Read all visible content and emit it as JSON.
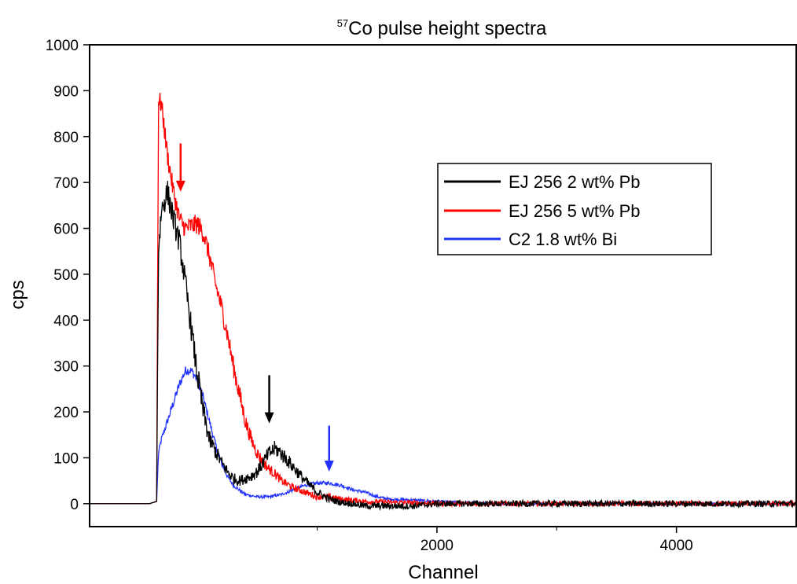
{
  "chart_data": {
    "type": "line",
    "title_sup": "57",
    "title": "Co pulse height spectra",
    "xlabel": "Channel",
    "ylabel": "cps",
    "xlim": [
      -900,
      5000
    ],
    "ylim": [
      -50,
      1000
    ],
    "xticks": [
      2000,
      4000
    ],
    "yticks": [
      0,
      100,
      200,
      300,
      400,
      500,
      600,
      700,
      800,
      900,
      1000
    ],
    "grid": false,
    "legend_position": "upper-right",
    "series": [
      {
        "name": "EJ 256 2 wt% Pb",
        "color": "#000000",
        "x": [
          -900,
          -400,
          -340,
          -325,
          -300,
          -250,
          -200,
          -150,
          -100,
          -50,
          0,
          50,
          100,
          200,
          250,
          300,
          350,
          400,
          450,
          500,
          550,
          600,
          650,
          700,
          750,
          800,
          900,
          1000,
          1100,
          1200,
          1300,
          1400,
          1600,
          1800,
          2000,
          2500,
          3000,
          3500,
          4000,
          4500,
          5000
        ],
        "values": [
          0,
          0,
          5,
          550,
          640,
          680,
          620,
          570,
          480,
          380,
          280,
          200,
          140,
          90,
          70,
          55,
          50,
          55,
          60,
          70,
          90,
          110,
          120,
          110,
          95,
          80,
          50,
          25,
          10,
          3,
          0,
          -5,
          -5,
          -5,
          0,
          0,
          0,
          0,
          0,
          0,
          0
        ],
        "noise": 28
      },
      {
        "name": "EJ 256 5 wt% Pb",
        "color": "#ff0000",
        "x": [
          -900,
          -400,
          -340,
          -325,
          -300,
          -250,
          -200,
          -150,
          -100,
          -50,
          0,
          50,
          100,
          150,
          200,
          250,
          300,
          350,
          400,
          450,
          500,
          550,
          600,
          650,
          700,
          800,
          900,
          1000,
          1100,
          1200,
          1400,
          1600,
          1800,
          2000,
          2500,
          3000,
          3500,
          4000,
          4500,
          5000
        ],
        "values": [
          0,
          0,
          5,
          880,
          870,
          760,
          680,
          620,
          600,
          605,
          610,
          590,
          540,
          480,
          430,
          370,
          300,
          240,
          180,
          140,
          110,
          90,
          75,
          65,
          50,
          35,
          25,
          15,
          15,
          10,
          5,
          3,
          2,
          0,
          0,
          0,
          0,
          0,
          0,
          0
        ],
        "noise": 22
      },
      {
        "name": "C2 1.8 wt% Bi",
        "color": "#2233ff",
        "x": [
          -900,
          -400,
          -340,
          -325,
          -300,
          -250,
          -200,
          -150,
          -100,
          -50,
          0,
          50,
          100,
          150,
          200,
          250,
          300,
          350,
          400,
          500,
          600,
          700,
          800,
          900,
          1000,
          1100,
          1200,
          1300,
          1400,
          1500,
          1600,
          1800,
          2000,
          2500,
          3000,
          3500,
          4000,
          4500,
          5000
        ],
        "values": [
          0,
          0,
          5,
          110,
          140,
          180,
          220,
          260,
          290,
          290,
          270,
          230,
          180,
          130,
          90,
          60,
          40,
          30,
          20,
          15,
          15,
          20,
          30,
          40,
          45,
          45,
          40,
          30,
          25,
          15,
          10,
          8,
          5,
          0,
          0,
          0,
          0,
          0,
          0
        ],
        "noise": 10
      }
    ],
    "annotations": [
      {
        "type": "arrow",
        "color": "#ff0000",
        "x": -140,
        "y_from": 785,
        "y_to": 680
      },
      {
        "type": "arrow",
        "color": "#000000",
        "x": 600,
        "y_from": 280,
        "y_to": 175
      },
      {
        "type": "arrow",
        "color": "#2233ff",
        "x": 1100,
        "y_from": 170,
        "y_to": 70
      }
    ]
  }
}
